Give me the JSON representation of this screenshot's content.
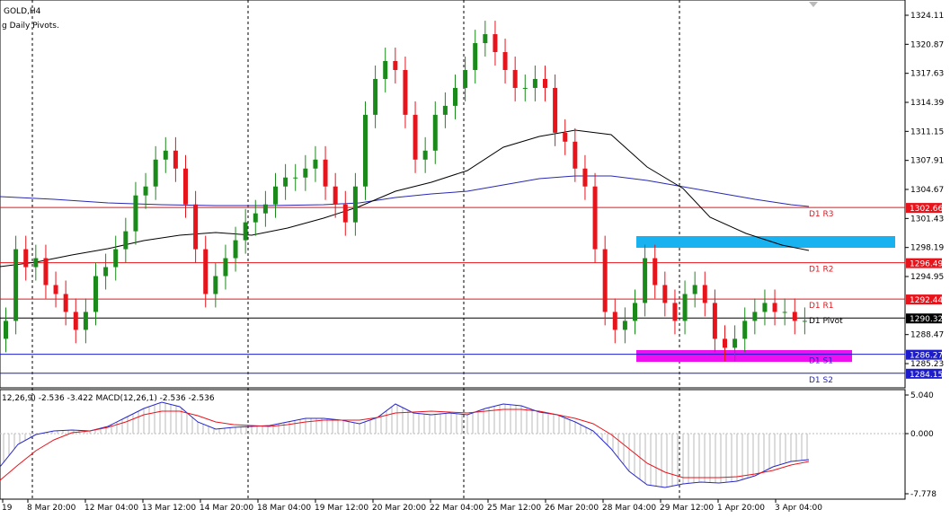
{
  "symbol": "GOLD,H4",
  "indicator_name": "g Daily Pivots.",
  "macd_label": "12,26,9) -2.536 -3.422 MACD(12,26,1) -2.536 -2.536",
  "price_axis": [
    "1324.11",
    "1320.87",
    "1317.63",
    "1314.39",
    "1311.15",
    "1307.91",
    "1304.67",
    "1301.43",
    "1298.19",
    "1294.95",
    "1288.47",
    "1285.23"
  ],
  "macd_axis": [
    "5.040",
    "0.000",
    "-7.778"
  ],
  "time_axis": [
    "19",
    "8 Mar 20:00",
    "12 Mar 04:00",
    "13 Mar 12:00",
    "14 Mar 20:00",
    "18 Mar 04:00",
    "19 Mar 12:00",
    "20 Mar 20:00",
    "22 Mar 04:00",
    "25 Mar 12:00",
    "26 Mar 20:00",
    "28 Mar 04:00",
    "29 Mar 12:00",
    "1 Apr 20:00",
    "3 Apr 04:00"
  ],
  "levels": [
    {
      "name": "D1 R3",
      "price": "1302.66",
      "price_value": 1302.66,
      "color": "#e8141c"
    },
    {
      "name": "D1 R2",
      "price": "1296.49",
      "price_value": 1296.49,
      "color": "#e8141c"
    },
    {
      "name": "D1 R1",
      "price": "1292.44",
      "price_value": 1292.44,
      "color": "#e8141c"
    },
    {
      "name": "D1 Pivot",
      "price": "1290.32",
      "price_value": 1290.32,
      "color": "#000000"
    },
    {
      "name": "D1 S1",
      "price": "1286.27",
      "price_value": 1286.27,
      "color": "#1c1ccc"
    },
    {
      "name": "D1 S2",
      "price": "1284.15",
      "price_value": 1284.15,
      "color": "#1c1ccc"
    }
  ],
  "colors": {
    "bull": "#1a8a1a",
    "bear": "#e8141c",
    "zone_top": "#19b2f0",
    "zone_bottom": "#ee10ee",
    "ma_fast": "#000000",
    "ma_slow": "#2828b4",
    "macd_line": "#2828c8",
    "signal_line": "#e8141c"
  },
  "chart_data": {
    "type": "candlestick",
    "price_range": [
      1282.8,
      1325.6
    ],
    "candles_close_trend": [
      1290,
      1298,
      1296,
      1297,
      1294,
      1293,
      1291,
      1289,
      1291,
      1295,
      1296,
      1298,
      1300,
      1304,
      1305,
      1308,
      1309,
      1307,
      1303,
      1298,
      1293,
      1295,
      1297,
      1299,
      1301,
      1302,
      1303,
      1305,
      1306,
      1306,
      1307,
      1308,
      1305,
      1303,
      1301,
      1305,
      1313,
      1317,
      1319,
      1318,
      1313,
      1308,
      1309,
      1313,
      1314,
      1316,
      1318,
      1321,
      1322,
      1320,
      1318,
      1316,
      1316,
      1317,
      1316,
      1311,
      1310,
      1307,
      1305,
      1298,
      1291,
      1289,
      1290,
      1292,
      1297,
      1294,
      1292,
      1290,
      1293,
      1294,
      1292,
      1288,
      1287,
      1288,
      1290,
      1291,
      1292,
      1291,
      1291,
      1290,
      1290
    ]
  }
}
